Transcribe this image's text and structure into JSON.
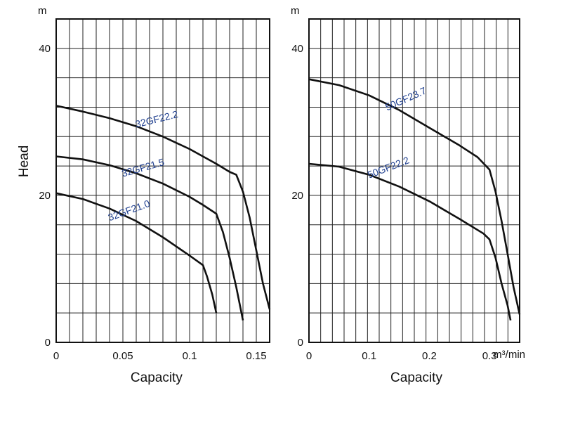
{
  "chart_data": [
    {
      "type": "line",
      "title": "",
      "xlabel": "Capacity",
      "ylabel": "Head",
      "y_unit_label": "m",
      "x_unit_label": "",
      "xlim": [
        0,
        0.16
      ],
      "ylim": [
        0,
        44
      ],
      "xticks": [
        "0",
        "0.05",
        "0.1",
        "0.15"
      ],
      "yticks": [
        "0",
        "20",
        "40"
      ],
      "grid": true,
      "series": [
        {
          "name": "32GF22.2",
          "label_pos": {
            "x": 0.06,
            "y": 29.2
          },
          "label_angle": -14,
          "points": [
            [
              0,
              32.2
            ],
            [
              0.02,
              31.4
            ],
            [
              0.04,
              30.5
            ],
            [
              0.06,
              29.4
            ],
            [
              0.08,
              28.0
            ],
            [
              0.1,
              26.3
            ],
            [
              0.12,
              24.3
            ],
            [
              0.13,
              23.2
            ],
            [
              0.135,
              22.8
            ],
            [
              0.14,
              20.5
            ],
            [
              0.145,
              17.0
            ],
            [
              0.15,
              12.5
            ],
            [
              0.155,
              8.0
            ],
            [
              0.16,
              4.5
            ]
          ]
        },
        {
          "name": "32GF21.5",
          "label_pos": {
            "x": 0.05,
            "y": 22.5
          },
          "label_angle": -16,
          "points": [
            [
              0,
              25.3
            ],
            [
              0.02,
              24.9
            ],
            [
              0.04,
              24.1
            ],
            [
              0.06,
              23.0
            ],
            [
              0.08,
              21.6
            ],
            [
              0.1,
              19.8
            ],
            [
              0.11,
              18.7
            ],
            [
              0.12,
              17.5
            ],
            [
              0.125,
              15.0
            ],
            [
              0.13,
              11.5
            ],
            [
              0.135,
              7.5
            ],
            [
              0.14,
              3.0
            ]
          ]
        },
        {
          "name": "32GF21.0",
          "label_pos": {
            "x": 0.04,
            "y": 16.5
          },
          "label_angle": -20,
          "points": [
            [
              0,
              20.3
            ],
            [
              0.02,
              19.5
            ],
            [
              0.04,
              18.2
            ],
            [
              0.06,
              16.5
            ],
            [
              0.08,
              14.3
            ],
            [
              0.1,
              11.8
            ],
            [
              0.11,
              10.5
            ],
            [
              0.113,
              9.0
            ],
            [
              0.117,
              6.5
            ],
            [
              0.12,
              4.0
            ]
          ]
        }
      ]
    },
    {
      "type": "line",
      "title": "",
      "xlabel": "Capacity",
      "ylabel": "",
      "y_unit_label": "m",
      "x_unit_label": "m³/min",
      "xlim": [
        0,
        0.35
      ],
      "ylim": [
        0,
        44
      ],
      "xticks": [
        "0",
        "0.1",
        "0.2",
        "0.3"
      ],
      "yticks": [
        "0",
        "20",
        "40"
      ],
      "grid": true,
      "series": [
        {
          "name": "50GF23.7",
          "label_pos": {
            "x": 0.13,
            "y": 31.5
          },
          "label_angle": -24,
          "points": [
            [
              0,
              35.8
            ],
            [
              0.05,
              35.0
            ],
            [
              0.1,
              33.6
            ],
            [
              0.15,
              31.6
            ],
            [
              0.2,
              29.2
            ],
            [
              0.25,
              26.8
            ],
            [
              0.28,
              25.2
            ],
            [
              0.3,
              23.5
            ],
            [
              0.31,
              20.5
            ],
            [
              0.32,
              16.5
            ],
            [
              0.33,
              12.0
            ],
            [
              0.34,
              7.5
            ],
            [
              0.35,
              3.8
            ]
          ]
        },
        {
          "name": "50GF22.2",
          "label_pos": {
            "x": 0.1,
            "y": 22.3
          },
          "label_angle": -21,
          "points": [
            [
              0,
              24.3
            ],
            [
              0.05,
              23.9
            ],
            [
              0.1,
              22.8
            ],
            [
              0.15,
              21.2
            ],
            [
              0.2,
              19.2
            ],
            [
              0.25,
              16.8
            ],
            [
              0.29,
              14.8
            ],
            [
              0.3,
              14.0
            ],
            [
              0.31,
              11.5
            ],
            [
              0.32,
              8.0
            ],
            [
              0.33,
              5.0
            ],
            [
              0.335,
              3.0
            ]
          ]
        }
      ]
    }
  ]
}
